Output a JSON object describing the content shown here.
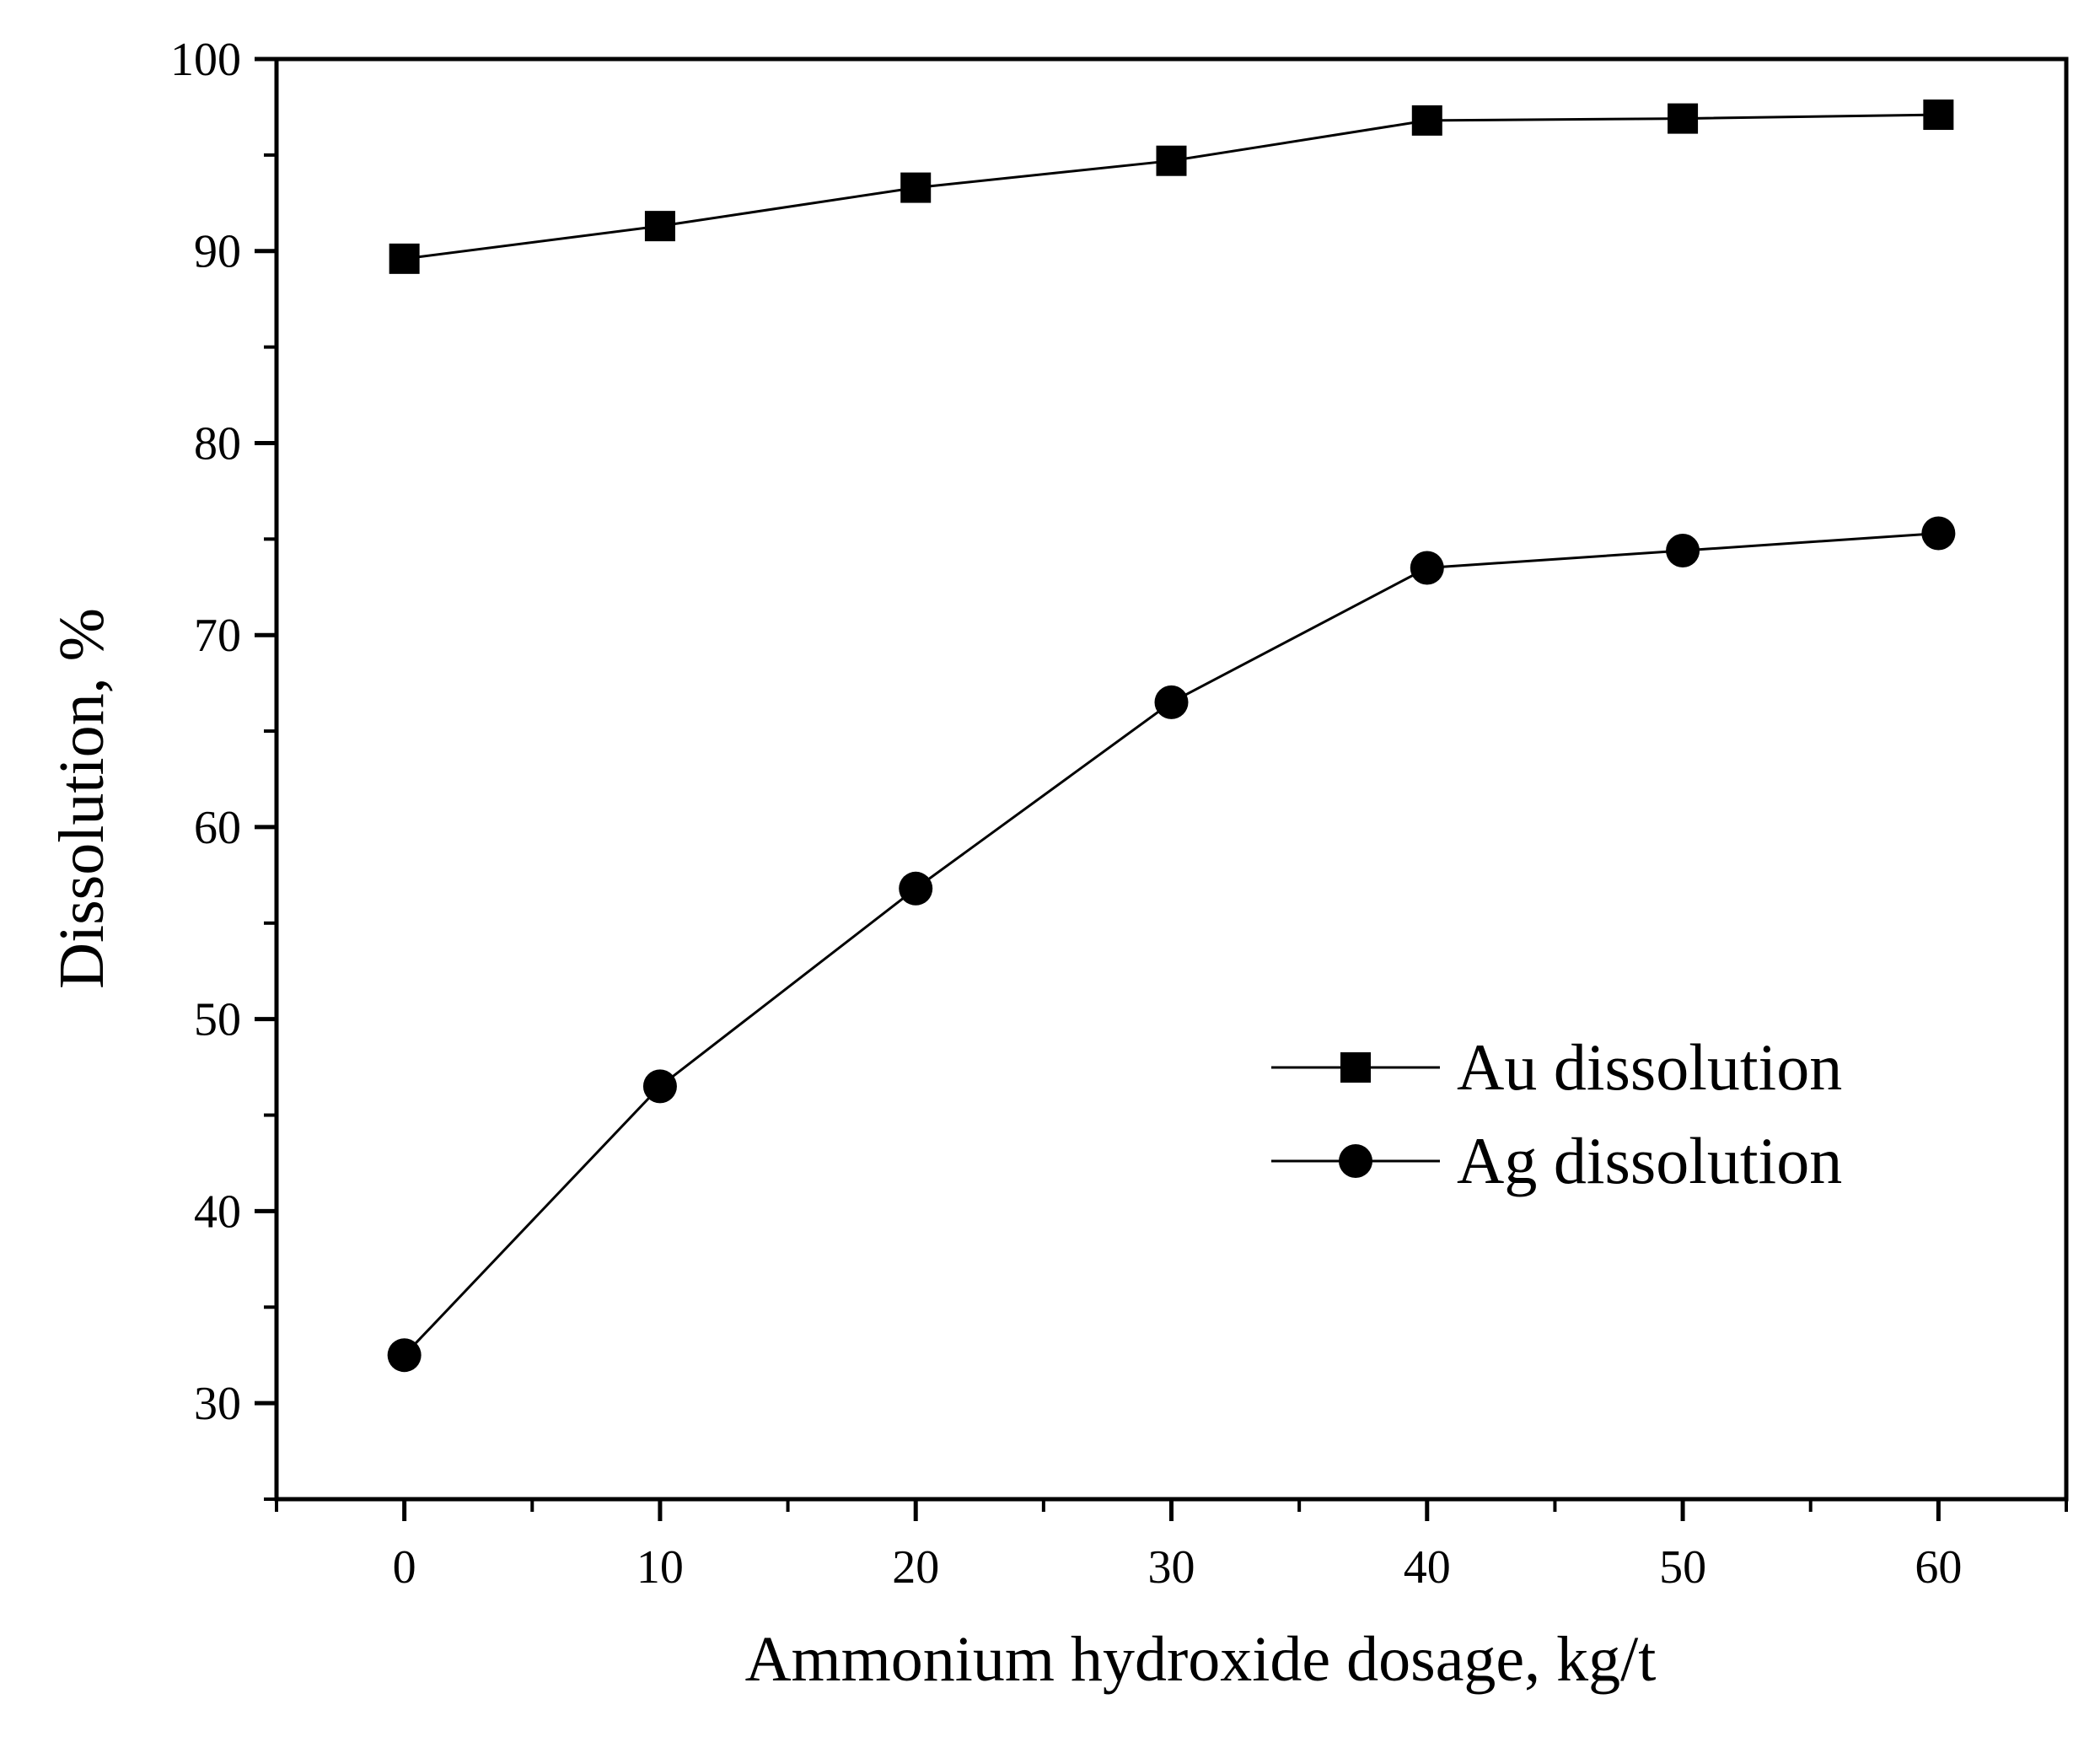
{
  "chart_data": {
    "type": "line",
    "title": "",
    "xlabel": "Ammonium hydroxide dosage, kg/t",
    "ylabel": "Dissolution, %",
    "xlim": [
      -5,
      65
    ],
    "ylim": [
      25,
      100
    ],
    "xticks": [
      0,
      10,
      20,
      30,
      40,
      50,
      60
    ],
    "xtick_labels": [
      "0",
      "10",
      "20",
      "30",
      "40",
      "50",
      "60"
    ],
    "yticks": [
      30,
      40,
      50,
      60,
      70,
      80,
      90,
      100
    ],
    "ytick_labels": [
      "30",
      "40",
      "50",
      "60",
      "70",
      "80",
      "90",
      "100"
    ],
    "x": [
      0,
      10,
      20,
      30,
      40,
      50,
      60
    ],
    "series": [
      {
        "name": "Au dissolution",
        "marker": "square",
        "values": [
          89.6,
          91.3,
          93.3,
          94.7,
          96.8,
          96.9,
          97.1
        ]
      },
      {
        "name": "Ag dissolution",
        "marker": "circle",
        "values": [
          32.5,
          46.5,
          56.8,
          66.5,
          73.5,
          74.4,
          75.3
        ]
      }
    ],
    "grid": false,
    "legend_position": "center-right"
  },
  "colors": {
    "line": "#000000",
    "marker": "#000000",
    "background": "#ffffff"
  }
}
